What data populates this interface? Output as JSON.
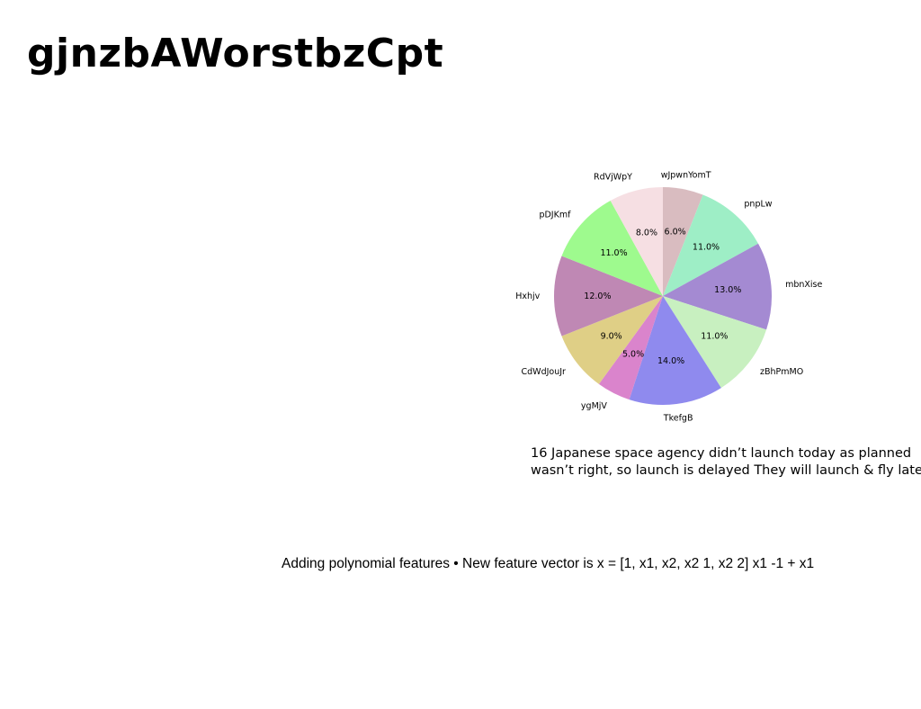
{
  "title": "gjnzbAWorstbzCpt",
  "caption": {
    "line1": "16 Japanese space agency didn’t launch today as planned",
    "line2": "wasn’t right, so launch is delayed They will launch & fly later,"
  },
  "formula": "Adding polynomial features • New feature vector is x = [1, x1, x2, x2 1, x2 2] x1 -1 + x1",
  "chart_data": {
    "type": "pie",
    "start_angle_deg": 90,
    "direction": "clockwise",
    "slices": [
      {
        "label": "wJpwnYomT",
        "value": 6.0,
        "pct_label": "6.0%",
        "color": "#d9bcc0"
      },
      {
        "label": "pnpLw",
        "value": 11.0,
        "pct_label": "11.0%",
        "color": "#9eeec6"
      },
      {
        "label": "mbnXise",
        "value": 13.0,
        "pct_label": "13.0%",
        "color": "#a48ad2"
      },
      {
        "label": "zBhPmMO",
        "value": 11.0,
        "pct_label": "11.0%",
        "color": "#c8f0c0"
      },
      {
        "label": "TkefgB",
        "value": 14.0,
        "pct_label": "14.0%",
        "color": "#8f8aee"
      },
      {
        "label": "ygMjV",
        "value": 5.0,
        "pct_label": "5.0%",
        "color": "#da84cc"
      },
      {
        "label": "CdWdJouJr",
        "value": 9.0,
        "pct_label": "9.0%",
        "color": "#dfcf86"
      },
      {
        "label": "Hxhjv",
        "value": 12.0,
        "pct_label": "12.0%",
        "color": "#bf88b4"
      },
      {
        "label": "pDJKmf",
        "value": 11.0,
        "pct_label": "11.0%",
        "color": "#9efa8e"
      },
      {
        "label": "RdVjWpY",
        "value": 8.0,
        "pct_label": "8.0%",
        "color": "#f6dfe3"
      }
    ]
  }
}
